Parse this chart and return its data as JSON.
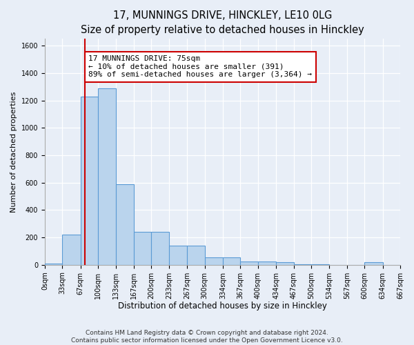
{
  "title": "17, MUNNINGS DRIVE, HINCKLEY, LE10 0LG",
  "subtitle": "Size of property relative to detached houses in Hinckley",
  "xlabel": "Distribution of detached houses by size in Hinckley",
  "ylabel": "Number of detached properties",
  "bin_edges": [
    0,
    33,
    67,
    100,
    133,
    167,
    200,
    233,
    267,
    300,
    334,
    367,
    400,
    434,
    467,
    500,
    534,
    567,
    600,
    634,
    667
  ],
  "bar_heights": [
    10,
    220,
    1230,
    1290,
    590,
    240,
    240,
    140,
    140,
    55,
    55,
    25,
    25,
    20,
    5,
    5,
    0,
    0,
    20,
    0
  ],
  "bar_color": "#bad4ed",
  "bar_edgecolor": "#5b9bd5",
  "bar_linewidth": 0.8,
  "vline_x": 75,
  "vline_color": "#cc0000",
  "annotation_text": "17 MUNNINGS DRIVE: 75sqm\n← 10% of detached houses are smaller (391)\n89% of semi-detached houses are larger (3,364) →",
  "annotation_box_facecolor": "white",
  "annotation_box_edgecolor": "#cc0000",
  "ylim": [
    0,
    1650
  ],
  "yticks": [
    0,
    200,
    400,
    600,
    800,
    1000,
    1200,
    1400,
    1600
  ],
  "tick_labels": [
    "0sqm",
    "33sqm",
    "67sqm",
    "100sqm",
    "133sqm",
    "167sqm",
    "200sqm",
    "233sqm",
    "267sqm",
    "300sqm",
    "334sqm",
    "367sqm",
    "400sqm",
    "434sqm",
    "467sqm",
    "500sqm",
    "534sqm",
    "567sqm",
    "600sqm",
    "634sqm",
    "667sqm"
  ],
  "bg_color": "#e8eef7",
  "plot_bg_color": "#e8eef7",
  "grid_color": "#ffffff",
  "footnote": "Contains HM Land Registry data © Crown copyright and database right 2024.\nContains public sector information licensed under the Open Government Licence v3.0.",
  "title_fontsize": 10.5,
  "xlabel_fontsize": 8.5,
  "ylabel_fontsize": 8,
  "tick_fontsize": 7,
  "annot_fontsize": 8,
  "footnote_fontsize": 6.5
}
